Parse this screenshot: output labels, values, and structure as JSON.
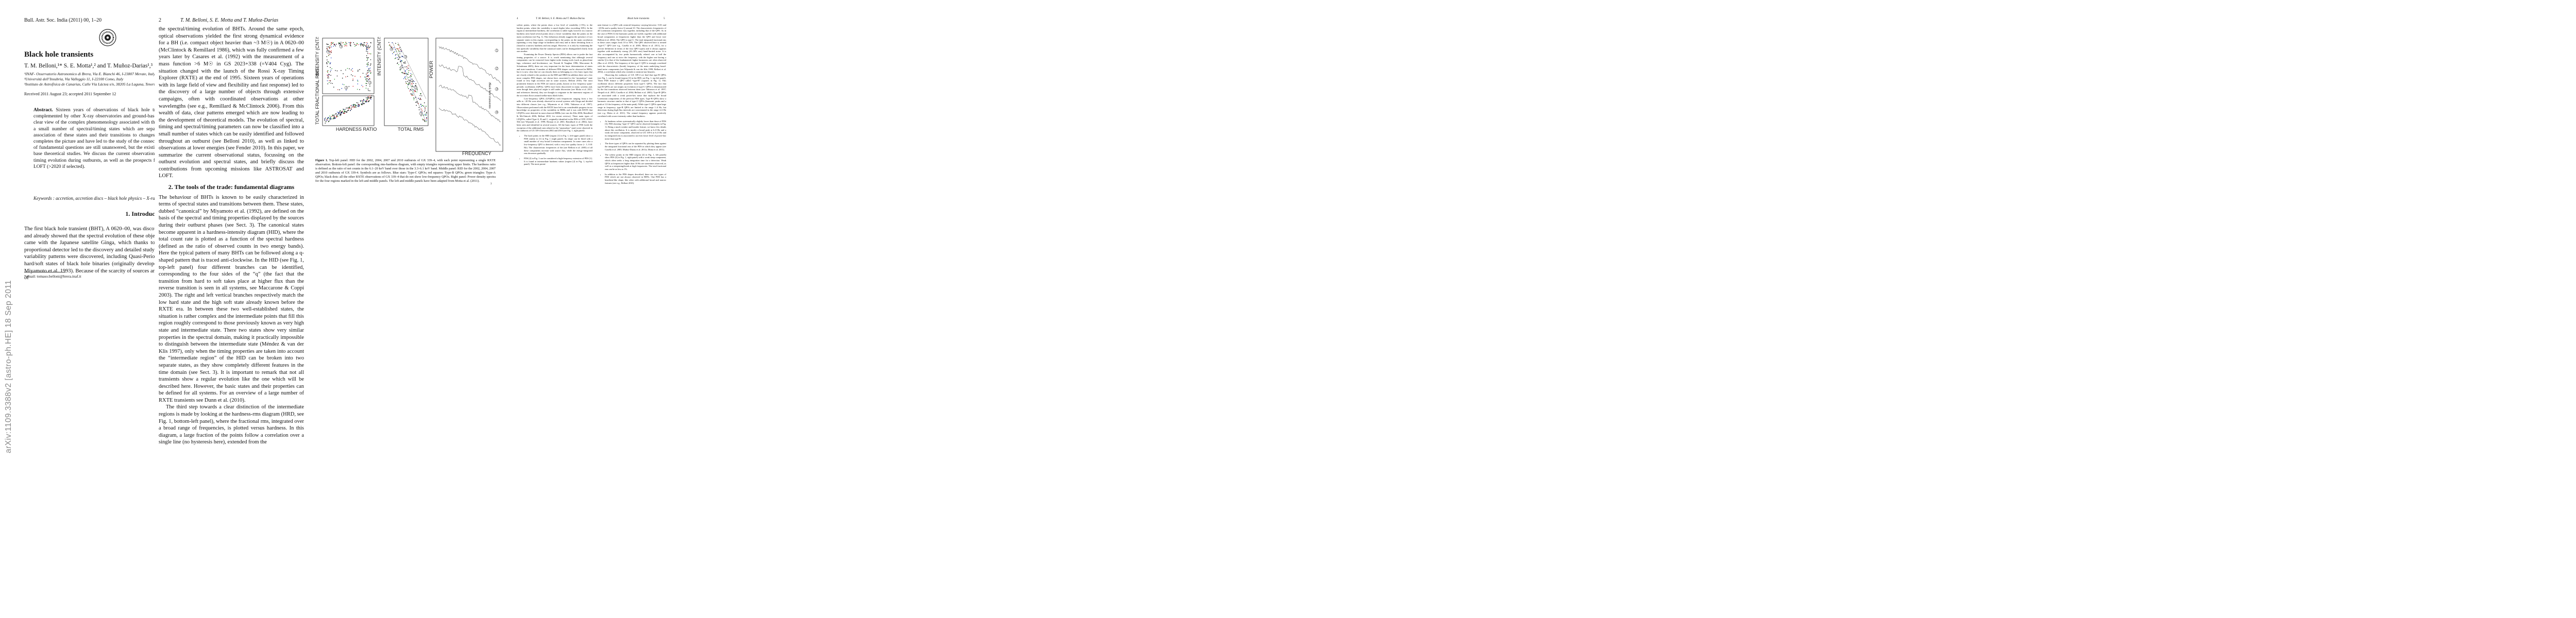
{
  "arxiv_stamp": "arXiv:1109.3388v2  [astro-ph.HE]  18 Sep 2011",
  "page1": {
    "journal": "Bull. Astr. Soc. India (2011) 00, 1–20",
    "title": "Black hole transients",
    "authors": "T. M. Belloni,¹* S. E. Motta¹,² and T. Muñoz-Darias¹,³",
    "affiliations": [
      "¹INAF- Osservatorio Astronomico di Brera, Via E. Bianchi 46, I-23807 Merate, Italy",
      "²Università dell’Insubria, Via Valleggio 11, I-22100 Como, Italy",
      "³Instituto de Astrofísica de Canarias, Calle Vía Láctea s/n, 38205 La Laguna, Tenerife, Spain"
    ],
    "received": "Received 2011 August 23; accepted 2011 September 12",
    "abstract_label": "Abstract.",
    "abstract_text": "Sixteen years of observations of black hole transients with the Rossi X-ray Timing Explorer, complemented by other X-ray observatories and ground-based optical/infrared/radio telescopes have given us a clear view of the complex phenomenology associated with their bright outbursts. This has led to the definition of a small number of spectral/timing states which are separated by marked transitions in observables. The association of these states and their transitions to changes in the radio emission from relativistic radio jets completes the picture and have led to the study of the connection between accretion and ejection. A good number of fundamental questions are still unanswered, but the existing picture provides a good framework on which to base theoretical studies. We discuss the current observational standpoint, with emphasis onto the spectral and timing evolution during outbursts, as well as the prospects for future missions such as ASTROSAT (2012) and LOFT (>2020 if selected).",
    "keywords": "Keywords : accretion, accretion discs – black hole physics – X-rays: binaries",
    "section_title": "1.   Introduction",
    "intro_text": "The first black hole transient (BHT), A 0620–00, was discovered more than thirty years ago (Elvis et al. 1975) and already showed that the spectral evolution of these objects was very complex. The first major step forward came with the Japanese satellite Ginga, which thanks to the presence of an all-sky monitor and a large proportional detector led to the discovery and detailed study of a few objects (Tanaka & Lewin 1995). Complex variability patterns were discovered, including Quasi-Periodic Oscillations, which led to the extension of the hard/soft states of black hole binaries (originally developed for Cygnus X-1) to additional states (see e.g., Miyamoto et al. 1993). Because of the scarcity of sources and of coverage, Ginga data gave only a limited view of",
    "footnote": "*email: tomaso.belloni@brera.inaf.it"
  },
  "page2": {
    "page_number": "2",
    "header": "T. M. Belloni, S. E. Motta and T. Muñoz-Darias",
    "para1": "the spectral/timing evolution of BHTs. Around the same epoch, optical observations yielded the first strong dynamical evidence for a BH (i.e. compact object heavier than ~3 M☉) in A 0620–00 (McClintock & Remillard 1986), which was fully confirmed a few years later by Casares et al. (1992) with the measurement of a mass function >6 M☉ in GS 2023+338 (=V404 Cyg). The situation changed with the launch of the Rossi X-ray Timing Explorer (RXTE) at the end of 1995. Sixteen years of operations with its large field of view and flexibility and fast response) led to the discovery of a large number of objects through extensive campaigns, often with coordinated observations at other wavelengths (see e.g., Remillard & McClintock 2006). From this wealth of data, clear patterns emerged which are now leading to the development of theoretical models. The evolution of spectral, timing and spectral/timing parameters can now be classified into a small number of states which can be easily identified and followed throughout an outburst (see Belloni 2010), as well as linked to observations at lower energies (see Fender 2010). In this paper, we summarize the current observational status, focussing on the outburst evolution and spectral states, and briefly discuss the contributions from upcoming missions like ASTROSAT and LOFT.",
    "section_title": "2.   The tools of the trade: fundamental diagrams",
    "para2": "The behaviour of BHTs is known to be easily characterized in terms of spectral states and transitions between them. These states, dubbed “canonical” by Miyamoto et al. (1992), are defined on the basis of the spectral and timing properties displayed by the sources during their outburst phases (see Sect. 3). The canonical states become apparent in a hardness-intensity diagram (HID), where the total count rate is plotted as a function of the spectral hardness (defined as the ratio of observed counts in two energy bands). Here the typical pattern of many BHTs can be followed along a q-shaped pattern that is traced anti-clockwise. In the HID (see Fig. 1, top-left panel) four different branches can be identified, corresponding to the four sides of the “q” (the fact that the transition from hard to soft takes place at higher flux than the reverse transition is seen in all systems, see Maccarone & Coppi 2003). The right and left vertical branches respectively match the low hard state and the high soft state already known before the RXTE era. In between these two well-established states, the situation is rather complex and the intermediate points that fill this region roughly correspond to those previously known as very high state and intermediate state. There two states show very similar properties in the spectral domain, making it practically impossible to distinguish between the intermediate state (Méndez & van der Klis 1997), only when the timing properties are taken into account the “intermediate region” of the HID can be broken into two separate states, as they show completely different features in the time domain (see Sect. 3). It is important to remark that not all transients show a regular evolution like the one which will be described here. However, the basic states and their properties can be defined for all systems. For an overview of a large number of RXTE transients see Dunn et al. (2010).",
    "para3": "The third step towards a clear distinction of the intermediate regions is made by looking at the hardness-rms diagram (HRD, see Fig. 1, bottom-left panel), where the fractional rms, integrated over a broad range of frequencies, is plotted versus hardness. In this diagram, a large fraction of the points follow a correlation over a single line (no hysteresis here), extended from the"
  },
  "page3": {
    "page_number": "3",
    "running_title": "Black hole transients",
    "caption_label": "Figure 1.",
    "caption_text": "Top-left panel: HID for the 2002, 2004, 2007 and 2010 outbursts of GX 339–4, with each point representing a single RXTE observation. Bottom-left panel: the corresponding rms-hardness diagram, with empty triangles representing upper limits. The hardness ratio is defined as the ratio of net counts in the 6.1–20 keV band over those in the 3.3–6.1 keV band. Middle panel: RID for the 2002, 2004, 2007 and 2010 outbursts of GX 339-4. Symbols are as follows. Blue stars: Type-C QPOs; red squares: Type-B QPOs; green triangles: Type-A QPOs; black dots: all the other RXTE observations of GX 339–4 that do not show low-frequency QPOs. Right panel: Power density spectra for the four regions marked in the left and middle panels. The left and middle panels have been adapted from Motta et al. (2011).",
    "hid_ylabel": "INTENSITY (CNT/S)",
    "hrd_ylabel": "TOTAL FRACTIONAL RMS",
    "hrd_xlabel": "HARDNESS RATIO",
    "rid_ylabel": "INTENSITY (CNT/S)",
    "rid_xlabel": "TOTAL RMS",
    "pds_ylabel": "POWER",
    "pds_xlabel": "FREQUENCY",
    "region_labels": [
      "1",
      "2",
      "3",
      "4"
    ]
  },
  "page4": {
    "page_number": "4",
    "header": "T. M. Belloni, S. E. Motta and T. Muñoz-Darias",
    "para1": "softest points, where the points show a low level of variability (<5%), to the hardest points, where the variability is much higher (also exceeding 30%). In the region at intermediate hardness, the correlation is rather tight, however in a narrow hardness ratio band several points show a lower variability than the points on the main correlation (see Fig. 1). This behaviour already suggests the presence of two separate states in this region, corresponding to the points on the main correlation (spanning a very large range in hardness and rms) and to those deviating from it (found in a narrow hardness and rms range). However, it is only by examining the fast aperiodic variability that the canonical states can be distinguished clearly from one another.",
    "para2": "Examining the Power Density Spectra (PDS) allows one to probe the fast timing properties of a source. It is worth mentioning that although several components can be extracted from higher-order timing tools (such as phase/time lags, coherence and bicoherence, see Nowak & Vaughan 1996; Maccarone & Schnittman 2005), these are very important for the basic determination of states and state transitions. A number of different PDS shapes can be observed in BHTs, but it is now clear that we can classify them as belonging to a few basic types that are closely related to the position on the HID and HRD (in addition there are a few more complex PDS shapes, not shown here, associated to the “anomalous” state found at very high accretion rate in some sources, Belloni 2010). The most prominent features in the PDS are narrow peaks, known as low frequency quasi-periodic oscillations (QPOs). QPOs have been discovered in many systems and, even though their physical origin is still under discussion (see Motta et al. 2011, and references therein), they are thought to originate in the innermost regions of the accretion flows around stellar-mass black holes.",
    "para3": "Low-frequency QPOs (LFQPOs) with frequencies ranging from a few mHz to ~20 Hz were already observed in several systems with Ginga and divided into different classes (see e.g., Miyamoto et al. 1993; Takizawa et al. 1997). Observations performed with the RXTE have led to an considerable progress in our knowledge on properties of the variability in BHBs and it was with RXTE that LFQPOs were detected in most observed BHBs (see van der Klis 2006; Remillard & McClintock 2006; Belloni 2010, for recent reviews). Three main types of LFQPOs, called Type-A, B and C, originally identified in the PDS of XTE J1550-564 (see Wijnands et al. 1999; Homan et al. 2001; Remillard et al. 2002), have been seen and identified in several sources. All the basic types of PDS (with the exception of the additional ones related to the “anomalous” state) were observed in the outbursts of GX 339-4 between 2002 and 2010 (see Fig. 1, right panel):",
    "bullets": [
      "The hard points in the HID (region [1] in Fig. 1, left-upper panel) show a PDS similar to [1] in Fig. 1 (right panel). Its shape can be fitted with a small number of very broad Lorentzian components. In some cases also a low-frequency QPO is detected, with a very low quality factor (< 1; 0.01 Hz). The characteristic frequencies of the (see Belloni et al. 2005) of all these components increase with source flux, while the energy-integrated rms decreases gradually.",
      "PDS [2] in Fig. 1 can be considered a high-frequency extension of PDS [1]. It is found at intermediate hardness values (region [2] in Fig. 1, top-left panel). The most promi-"
    ]
  },
  "page5": {
    "page_number": "5",
    "running_title": "Black hole transients",
    "para1": "nent feature is a QPO with centroid frequency varying between ~0.01 and ~20 Hz and a quality factor Q around 10. The characteristic frequencies of all Lorentzian components vary together, including that of the QPO. As in the case of PDS [1] the harmonic peaks are visible, together with additional broad components at frequencies higher than the QPO and lower (see Belloni et al. 2002). The QPO is type-C. The total integrated fractional rms in these cases ranges from 10 to 30%. The QPO observed here is termed “type-C” QPO (see e.g., Casella et al. 2005; Motta et al. 2011), for a precise definition in terms of the four QPO types) and it always appears together with moderately strong (10–30% rms) band-limited noise. It is also accompanied by two peaks harmonically related: one at half the frequency and one at twice the frequency, with the higher one having a similar Q to that of the fundamental; higher harmonics are often observed (Rao et al. 2010). The frequency of the type-C QPO is strongly correlated with the characteristic (break) frequency of the main underlying broad-band noise components (see Wijnands & van der Klis 1999; Belloni et al. 2002), a correlation which also extends to neutron-star binaries.",
    "para2": "Observing the outbursts of GX 339-4 we find that type-B QPOs (see Fig. 1, can be found (region [3] in the HID, see Fig. 1, top-left panel). These PDS feature a QPO called “type-B” (squares in Fig. 1). This oscillation shows different properties from type-C QPOs. The fact that type-B QPOs are not simply an evolution of type-C QPOs is demonstrated by the fast transitions observed between them (see Takizawa et al. 1997; Nespoli et al. 2003; Casella et al. 2004; Belloni et al. 2005). Type-B QPOs are associated with a weak power-law noise that replaces the broad Lorentzian components of the previous PDS types. Type-B QPOs show a harmonic structure similar to that of type-C QPOs (harmonic peaks and a peak at 1/2 the frequency of the main peak). While type-C QPOs span large range in frequency, type-B QPOs are limited to the range 1–6 Hz, but detections during high-flux intervals are concentrated in the range 4–6 Hz (see e.g. Motta et al. 2011). The central frequency appears positively correlated with source intensity rather than hardness.",
    "bullets": [
      "At hardness values systematically slightly lower than those of PDS [3], PDS showing “type-A” QPO can be observed (triangles in Fig. 1). Being a much weaker and broader feature, we know few details about this oscillation. It is mostly a broad peak at 6–8 Hz and a weak red noise component, observed in GX 339-4 at 6–8 Hz and its integrated rms is associated to an even lower level of power-law noise than type-B.",
      "The three types of QPOs can be separated by plotting them against the integrated fractional rms of the PDS in which they appear (see Casella et al. 2005; Muñoz-Darias et al. 2011a; Motta et al. 2011).",
      "The softest points in the HID (region [4] in Fig. 1, left panels) show PDS [4] in Fig. 1, right panel) with a weak steep component, which often seeks a long integration time for a detection. Weak QPOs at frequencies higher than 10 Hz are sometimes observed, as well as a steepening/break at high frequencies. The total fractional rms can be as low as 1%.",
      "In addition to the PDS shapes described, there are two types of PDS which are not always observed in BHTs. One PDS has a heartbeat-like shape, like other with additional broad and narrow features (see e.g., Belloni 2010)."
    ]
  }
}
